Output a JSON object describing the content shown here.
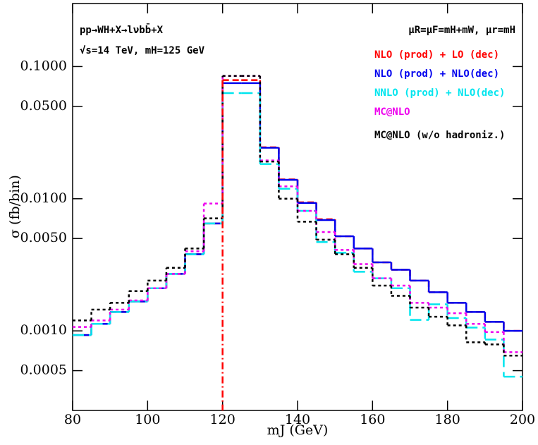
{
  "chart_data": {
    "type": "histogram",
    "xlabel": "mJ (GeV)",
    "ylabel": "σ (fb/bin)",
    "annotations": [
      "pp→WH+X→lνbb̄+X",
      "√s=14 TeV,  mH=125 GeV",
      "μR=μF=mH+mW,  μr=mH"
    ],
    "log_y": true,
    "xlim": [
      80,
      200
    ],
    "ylim": [
      0.00025,
      0.3
    ],
    "xticks": [
      80,
      100,
      120,
      140,
      160,
      180,
      200
    ],
    "yticks": [
      {
        "value": 0.1,
        "label": "0.1000"
      },
      {
        "value": 0.05,
        "label": "0.0500"
      },
      {
        "value": 0.01,
        "label": "0.0100"
      },
      {
        "value": 0.005,
        "label": "0.0050"
      },
      {
        "value": 0.001,
        "label": "0.0010"
      },
      {
        "value": 0.0005,
        "label": "0.0005"
      }
    ],
    "reference_line_x": 120,
    "reference_line_color": "#ff0000",
    "bins": [
      80,
      85,
      90,
      95,
      100,
      105,
      110,
      115,
      120,
      125,
      130,
      135,
      140,
      145,
      150,
      155,
      160,
      165,
      170,
      175,
      180,
      185,
      190,
      195,
      200
    ],
    "series": [
      {
        "name": "NLO (prod) + LO (dec)",
        "color": "#ff0000",
        "style": "dashed",
        "values": [
          0.00093,
          0.00113,
          0.00139,
          0.00167,
          0.0021,
          0.0027,
          0.0038,
          0.0065,
          0.079,
          0.079,
          0.0245,
          0.014,
          0.0094,
          0.007,
          0.0052,
          0.0042,
          0.0033,
          0.0029,
          0.0024,
          0.00196,
          0.00163,
          0.00139,
          0.00117,
          0.001
        ]
      },
      {
        "name": "NLO (prod) + NLO(dec)",
        "color": "#0000ee",
        "style": "solid",
        "values": [
          0.00093,
          0.00113,
          0.00139,
          0.00167,
          0.0021,
          0.0027,
          0.0038,
          0.0065,
          0.075,
          0.075,
          0.0243,
          0.0139,
          0.0093,
          0.0069,
          0.0052,
          0.0042,
          0.0033,
          0.0029,
          0.0024,
          0.00196,
          0.00163,
          0.00139,
          0.00117,
          0.001
        ]
      },
      {
        "name": "NNLO (prod) + NLO(dec)",
        "color": "#00e5ee",
        "style": "longdash",
        "values": [
          0.00093,
          0.00113,
          0.00139,
          0.00167,
          0.0021,
          0.0027,
          0.0038,
          0.0065,
          0.063,
          0.063,
          0.0183,
          0.0119,
          0.0081,
          0.0047,
          0.0039,
          0.0028,
          0.0025,
          0.0021,
          0.00121,
          0.00159,
          0.00125,
          0.00106,
          0.00086,
          0.00045
        ]
      },
      {
        "name": "MC@NLO",
        "color": "#ee00ee",
        "style": "dotted",
        "values": [
          0.00107,
          0.0012,
          0.00145,
          0.0017,
          0.0021,
          0.0027,
          0.004,
          0.0092,
          0.085,
          0.085,
          0.0195,
          0.0124,
          0.0081,
          0.0056,
          0.0041,
          0.0032,
          0.0025,
          0.0022,
          0.00163,
          0.0015,
          0.00136,
          0.00113,
          0.00098,
          0.00069
        ]
      },
      {
        "name": "MC@NLO (w/o hadroniz.)",
        "color": "#000000",
        "style": "dotted",
        "values": [
          0.0012,
          0.00145,
          0.00163,
          0.002,
          0.0024,
          0.003,
          0.0042,
          0.0071,
          0.085,
          0.085,
          0.0191,
          0.01,
          0.0067,
          0.0049,
          0.0038,
          0.003,
          0.0022,
          0.00184,
          0.0015,
          0.00128,
          0.0011,
          0.00082,
          0.00079,
          0.00065
        ]
      }
    ]
  }
}
